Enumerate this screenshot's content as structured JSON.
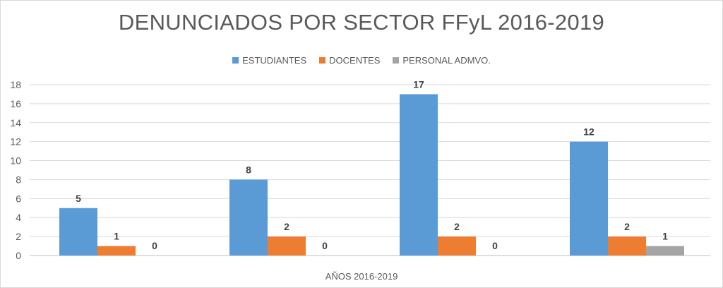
{
  "chart_data": {
    "type": "bar",
    "title": "DENUNCIADOS POR SECTOR FFyL 2016-2019",
    "xlabel": "AÑOS 2016-2019",
    "ylabel": "",
    "categories": [
      "",
      "",
      "",
      ""
    ],
    "series": [
      {
        "name": "ESTUDIANTES",
        "color": "#5b9bd5",
        "values": [
          5,
          8,
          17,
          12
        ]
      },
      {
        "name": "DOCENTES",
        "color": "#ed7d31",
        "values": [
          1,
          2,
          2,
          2
        ]
      },
      {
        "name": "PERSONAL ADMVO.",
        "color": "#a5a5a5",
        "values": [
          0,
          0,
          0,
          1
        ]
      }
    ],
    "ylim": [
      0,
      18
    ],
    "yticks": [
      0,
      2,
      4,
      6,
      8,
      10,
      12,
      14,
      16,
      18
    ],
    "grid": true,
    "legend": "top-center",
    "data_labels": true
  }
}
